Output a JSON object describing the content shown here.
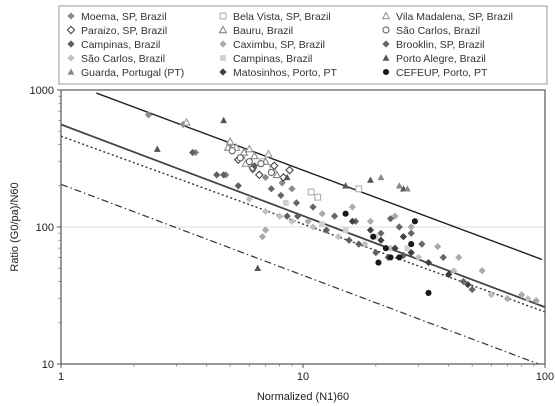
{
  "chart_data": {
    "type": "scatter",
    "title": "",
    "xlabel": "Normalized (N1)60",
    "ylabel": "Ratio (G0/pa)/N60",
    "xscale": "log",
    "yscale": "log",
    "xlim": [
      1,
      100
    ],
    "ylim": [
      10,
      1000
    ],
    "x_ticks": [
      "1",
      "10",
      "100"
    ],
    "y_ticks": [
      "10",
      "100",
      "1000"
    ],
    "grid": "horizontal",
    "legend_position": "top",
    "series": [
      {
        "name": "Moema, SP, Brazil",
        "marker": "diamond",
        "color": "#8a8a8a",
        "points": [
          [
            2.3,
            660
          ],
          [
            3.2,
            560
          ],
          [
            5.0,
            400
          ],
          [
            5.6,
            320
          ],
          [
            6.2,
            260
          ],
          [
            4.8,
            240
          ],
          [
            7.0,
            230
          ],
          [
            8.2,
            210
          ],
          [
            3.6,
            350
          ],
          [
            9.0,
            190
          ]
        ]
      },
      {
        "name": "Bela Vista, SP, Brazil",
        "marker": "square-open",
        "color": "#b0b0b0",
        "points": [
          [
            6.8,
            300
          ],
          [
            7.5,
            270
          ],
          [
            10.8,
            180
          ],
          [
            11.5,
            165
          ],
          [
            17.0,
            190
          ]
        ]
      },
      {
        "name": "Vila Madalena, SP, Brazil",
        "marker": "triangle-open",
        "color": "#9a9a9a",
        "points": [
          [
            3.3,
            580
          ],
          [
            5.0,
            420
          ],
          [
            5.3,
            380
          ],
          [
            6.0,
            370
          ],
          [
            7.2,
            340
          ],
          [
            5.8,
            290
          ]
        ]
      },
      {
        "name": "Paraizo, SP, Brazil",
        "marker": "diamond-open",
        "color": "#444444",
        "points": [
          [
            5.4,
            310
          ],
          [
            6.2,
            270
          ],
          [
            6.6,
            240
          ],
          [
            7.6,
            280
          ],
          [
            8.3,
            230
          ],
          [
            8.8,
            260
          ]
        ]
      },
      {
        "name": "Bauru, Brazil",
        "marker": "triangle-open",
        "color": "#888888",
        "points": [
          [
            4.9,
            380
          ],
          [
            5.7,
            350
          ],
          [
            6.3,
            330
          ],
          [
            7.0,
            300
          ],
          [
            7.8,
            240
          ]
        ]
      },
      {
        "name": "São Carlos, Brazil",
        "marker": "circle-open",
        "color": "#666666",
        "points": [
          [
            5.1,
            360
          ],
          [
            5.5,
            320
          ],
          [
            6.0,
            300
          ],
          [
            6.7,
            290
          ],
          [
            7.4,
            250
          ]
        ]
      },
      {
        "name": "Campinas, Brazil",
        "marker": "diamond",
        "color": "#5f5f5f",
        "points": [
          [
            3.5,
            350
          ],
          [
            4.4,
            240
          ],
          [
            4.7,
            240
          ],
          [
            5.4,
            200
          ],
          [
            6.3,
            280
          ],
          [
            8.6,
            120
          ],
          [
            9.5,
            120
          ],
          [
            12.5,
            95
          ],
          [
            15.5,
            80
          ],
          [
            17.0,
            75
          ],
          [
            20.0,
            65
          ],
          [
            22.5,
            60
          ],
          [
            26.0,
            62
          ]
        ]
      },
      {
        "name": "Caximbu, SP, Brazil",
        "marker": "diamond",
        "color": "#aaaaaa",
        "points": [
          [
            7.0,
            95
          ],
          [
            6.8,
            85
          ],
          [
            10.5,
            110
          ],
          [
            12.0,
            125
          ],
          [
            16.0,
            140
          ],
          [
            19.0,
            110
          ],
          [
            24.0,
            120
          ],
          [
            28.0,
            100
          ],
          [
            36.0,
            72
          ],
          [
            44.0,
            60
          ],
          [
            55.0,
            48
          ],
          [
            70.0,
            30
          ],
          [
            80.0,
            32
          ],
          [
            92.0,
            29
          ]
        ]
      },
      {
        "name": "Brooklin, SP, Brazil",
        "marker": "diamond",
        "color": "#666666",
        "points": [
          [
            7.4,
            190
          ],
          [
            8.1,
            170
          ],
          [
            9.4,
            150
          ],
          [
            11.0,
            140
          ],
          [
            13.5,
            120
          ],
          [
            16.5,
            110
          ],
          [
            21.0,
            90
          ],
          [
            23.0,
            115
          ],
          [
            25.0,
            100
          ],
          [
            28.0,
            90
          ],
          [
            31.0,
            75
          ],
          [
            38.0,
            60
          ],
          [
            46.0,
            40
          ],
          [
            50.0,
            35
          ]
        ]
      },
      {
        "name": "São Carlos, Brazil",
        "marker": "diamond",
        "color": "#c0c0c0",
        "points": [
          [
            6.0,
            160
          ],
          [
            7.0,
            130
          ],
          [
            8.0,
            120
          ],
          [
            9.0,
            110
          ],
          [
            11.0,
            100
          ],
          [
            14.0,
            85
          ],
          [
            18.0,
            75
          ],
          [
            23.0,
            70
          ],
          [
            30.0,
            60
          ],
          [
            42.0,
            48
          ],
          [
            60.0,
            32
          ],
          [
            85.0,
            30
          ]
        ]
      },
      {
        "name": "Campinas, Brazil",
        "marker": "square",
        "color": "#d0d0d0",
        "points": [
          [
            8.5,
            150
          ],
          [
            12.0,
            105
          ],
          [
            15.0,
            95
          ],
          [
            20.0,
            85
          ],
          [
            27.0,
            70
          ]
        ]
      },
      {
        "name": "Porto Alegre, Brazil",
        "marker": "triangle",
        "color": "#555555",
        "points": [
          [
            2.5,
            370
          ],
          [
            4.7,
            600
          ],
          [
            8.6,
            230
          ],
          [
            15.0,
            200
          ],
          [
            19.0,
            220
          ],
          [
            26.0,
            190
          ],
          [
            6.5,
            50
          ]
        ]
      },
      {
        "name": "Guarda, Portugal (PT)",
        "marker": "triangle",
        "color": "#8a8a8a",
        "points": [
          [
            21.0,
            230
          ],
          [
            25.0,
            200
          ],
          [
            27.0,
            190
          ]
        ]
      },
      {
        "name": "Matosinhos, Porto, PT",
        "marker": "diamond",
        "color": "#3f3f3f",
        "points": [
          [
            16.0,
            110
          ],
          [
            19.0,
            95
          ],
          [
            21.0,
            80
          ],
          [
            24.0,
            70
          ],
          [
            26.0,
            85
          ],
          [
            28.0,
            65
          ],
          [
            33.0,
            55
          ],
          [
            40.0,
            45
          ],
          [
            48.0,
            38
          ]
        ]
      },
      {
        "name": "CEFEUP, Porto, PT",
        "marker": "circle",
        "color": "#1a1a1a",
        "points": [
          [
            15.0,
            125
          ],
          [
            19.5,
            85
          ],
          [
            20.5,
            55
          ],
          [
            23.0,
            60
          ],
          [
            22.0,
            70
          ],
          [
            25.0,
            60
          ],
          [
            29.0,
            110
          ],
          [
            28.0,
            75
          ],
          [
            33.0,
            33
          ]
        ]
      }
    ],
    "lines": [
      {
        "style": "solid",
        "color": "#222222",
        "width": 1.4,
        "x": [
          1.4,
          97
        ],
        "y": [
          950,
          58
        ]
      },
      {
        "style": "solid",
        "color": "#444444",
        "width": 1.8,
        "x": [
          1,
          100
        ],
        "y": [
          560,
          26
        ]
      },
      {
        "style": "dotted",
        "color": "#333333",
        "width": 1.4,
        "x": [
          1,
          100
        ],
        "y": [
          460,
          24
        ]
      },
      {
        "style": "dashdot",
        "color": "#333333",
        "width": 1.2,
        "x": [
          1,
          94
        ],
        "y": [
          205,
          10
        ]
      }
    ]
  }
}
